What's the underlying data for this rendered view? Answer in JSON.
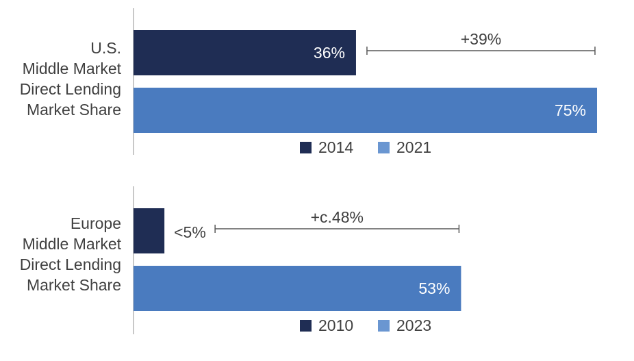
{
  "chart_data": [
    {
      "type": "bar",
      "orientation": "horizontal",
      "category_label": [
        "U.S.",
        "Middle Market",
        "Direct Lending",
        "Market Share"
      ],
      "series": [
        {
          "name": "2014",
          "value": 36,
          "label": "36%",
          "color": "#1f2d54"
        },
        {
          "name": "2021",
          "value": 75,
          "label": "75%",
          "color": "#4a7bbf"
        }
      ],
      "annotation": "+39%",
      "xlim": [
        0,
        75
      ],
      "legend": "bottom",
      "grid": false
    },
    {
      "type": "bar",
      "orientation": "horizontal",
      "category_label": [
        "Europe",
        "Middle Market",
        "Direct Lending",
        "Market Share"
      ],
      "series": [
        {
          "name": "2010",
          "value": 5,
          "label": "<5%",
          "color": "#1f2d54"
        },
        {
          "name": "2023",
          "value": 53,
          "label": "53%",
          "color": "#4a7bbf"
        }
      ],
      "annotation": "+c.48%",
      "xlim": [
        0,
        75
      ],
      "legend": "bottom",
      "grid": false
    }
  ],
  "legend_colors": [
    "#1f2d54",
    "#6a96d1"
  ]
}
